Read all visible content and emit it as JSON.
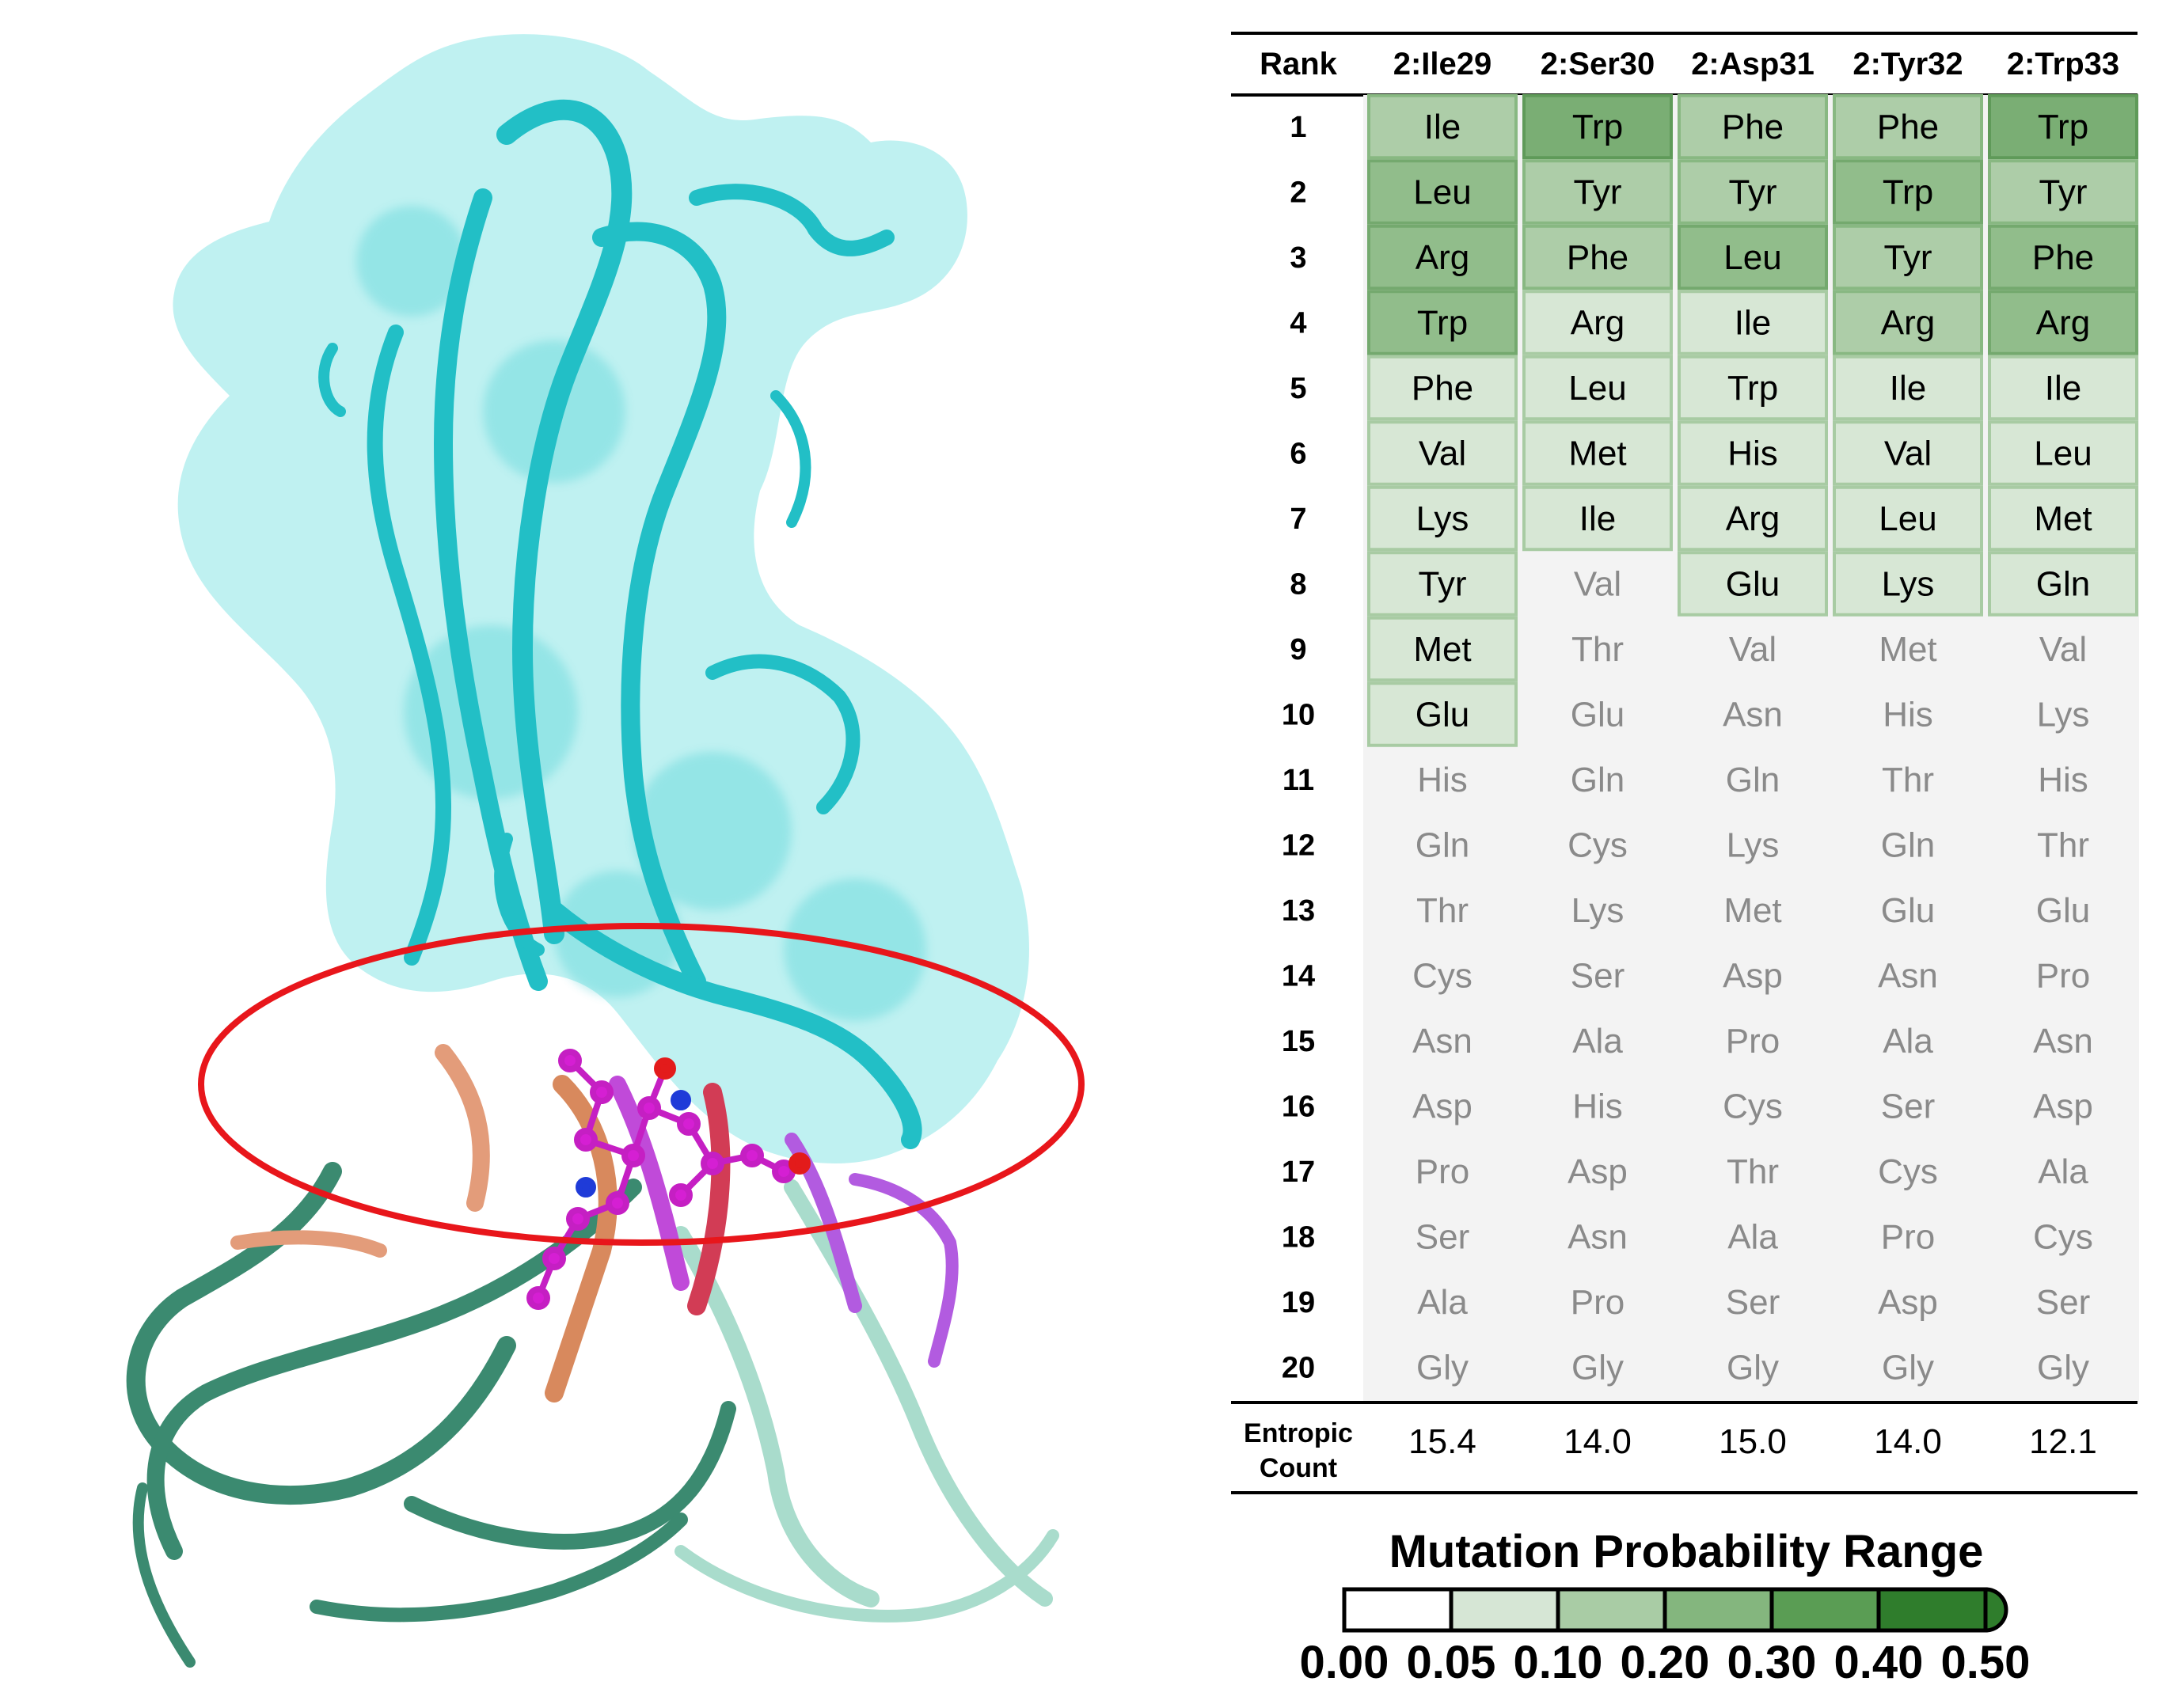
{
  "table": {
    "header_rank": "Rank",
    "columns": [
      "2:Ile29",
      "2:Ser30",
      "2:Asp31",
      "2:Tyr32",
      "2:Trp33"
    ],
    "ranks": [
      "1",
      "2",
      "3",
      "4",
      "5",
      "6",
      "7",
      "8",
      "9",
      "10",
      "11",
      "12",
      "13",
      "14",
      "15",
      "16",
      "17",
      "18",
      "19",
      "20"
    ],
    "cells": [
      [
        "Ile",
        "Leu",
        "Arg",
        "Trp",
        "Phe",
        "Val",
        "Lys",
        "Tyr",
        "Met",
        "Glu",
        "His",
        "Gln",
        "Thr",
        "Cys",
        "Asn",
        "Asp",
        "Pro",
        "Ser",
        "Ala",
        "Gly"
      ],
      [
        "Trp",
        "Tyr",
        "Phe",
        "Arg",
        "Leu",
        "Met",
        "Ile",
        "Val",
        "Thr",
        "Glu",
        "Gln",
        "Cys",
        "Lys",
        "Ser",
        "Ala",
        "His",
        "Asp",
        "Asn",
        "Pro",
        "Gly"
      ],
      [
        "Phe",
        "Tyr",
        "Leu",
        "Ile",
        "Trp",
        "His",
        "Arg",
        "Glu",
        "Val",
        "Asn",
        "Gln",
        "Lys",
        "Met",
        "Asp",
        "Pro",
        "Cys",
        "Thr",
        "Ala",
        "Ser",
        "Gly"
      ],
      [
        "Phe",
        "Trp",
        "Tyr",
        "Arg",
        "Ile",
        "Val",
        "Leu",
        "Lys",
        "Met",
        "His",
        "Thr",
        "Gln",
        "Glu",
        "Asn",
        "Ala",
        "Ser",
        "Cys",
        "Pro",
        "Asp",
        "Gly"
      ],
      [
        "Trp",
        "Tyr",
        "Phe",
        "Arg",
        "Ile",
        "Leu",
        "Met",
        "Gln",
        "Val",
        "Lys",
        "His",
        "Thr",
        "Glu",
        "Pro",
        "Asn",
        "Asp",
        "Ala",
        "Cys",
        "Ser",
        "Gly"
      ]
    ],
    "levels": [
      [
        2,
        3,
        3,
        3,
        1,
        1,
        1,
        1,
        1,
        1,
        0,
        0,
        0,
        0,
        0,
        0,
        0,
        0,
        0,
        0
      ],
      [
        4,
        2,
        2,
        1,
        1,
        1,
        1,
        0,
        0,
        0,
        0,
        0,
        0,
        0,
        0,
        0,
        0,
        0,
        0,
        0
      ],
      [
        2,
        2,
        3,
        1,
        1,
        1,
        1,
        1,
        0,
        0,
        0,
        0,
        0,
        0,
        0,
        0,
        0,
        0,
        0,
        0
      ],
      [
        2,
        3,
        2,
        2,
        1,
        1,
        1,
        1,
        0,
        0,
        0,
        0,
        0,
        0,
        0,
        0,
        0,
        0,
        0,
        0
      ],
      [
        4,
        2,
        3,
        3,
        1,
        1,
        1,
        1,
        0,
        0,
        0,
        0,
        0,
        0,
        0,
        0,
        0,
        0,
        0,
        0
      ]
    ],
    "entropic_label_line1": "Entropic",
    "entropic_label_line2": "Count",
    "entropic_values": [
      "15.4",
      "14.0",
      "15.0",
      "14.0",
      "12.1"
    ]
  },
  "legend": {
    "title": "Mutation Probability Range",
    "ticks": [
      "0.00",
      "0.05",
      "0.10",
      "0.20",
      "0.30",
      "0.40",
      "0.50"
    ],
    "colors": [
      "#ffffff",
      "#d6e6d5",
      "#a9cca5",
      "#84b67e",
      "#5a9d54",
      "#2f7d2c"
    ]
  },
  "colors": {
    "cell_levels": [
      "#f3f3f3",
      "#d7e7d5",
      "#adcda8",
      "#91bd8b",
      "#7aae74"
    ],
    "cell_borders": [
      "#f3f3f3",
      "#a8cba3",
      "#88b882",
      "#74a96e",
      "#5f9a59"
    ],
    "text_active": "#000000",
    "text_inactive": "#8a8a8a",
    "ellipse": "#e8161b",
    "cyan": "#2ec6cc",
    "surface": "#8ae6e6"
  }
}
